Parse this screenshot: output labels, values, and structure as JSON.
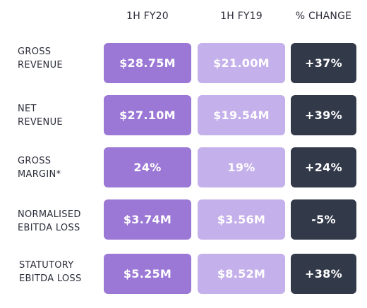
{
  "headers": [
    "1H FY20",
    "1H FY19",
    "% CHANGE"
  ],
  "rows": [
    {
      "label_line1": "GROSS",
      "label_line2": "REVENUE",
      "fy20": "$28.75M",
      "fy19": "$21.00M",
      "change": "+37%"
    },
    {
      "label_line1": "NET",
      "label_line2": "REVENUE",
      "fy20": "$27.10M",
      "fy19": "$19.54M",
      "change": "+39%"
    },
    {
      "label_line1": "GROSS",
      "label_line2": "MARGIN*",
      "fy20": "24%",
      "fy19": "19%",
      "change": "+24%"
    },
    {
      "label_line1": "NORMALISED",
      "label_line2": "EBITDA LOSS",
      "fy20": "$3.74M",
      "fy19": "$3.56M",
      "change": "-5%"
    },
    {
      "label_line1": "STATUTORY",
      "label_line2": "EBITDA LOSS",
      "fy20": "$5.25M",
      "fy19": "$8.52M",
      "change": "+38%"
    }
  ],
  "colors": {
    "fy20_cell": "#9b78d6",
    "fy19_cell": "#c4b0ea",
    "change_cell": "#323949",
    "label_text": "#2b2d3a"
  }
}
